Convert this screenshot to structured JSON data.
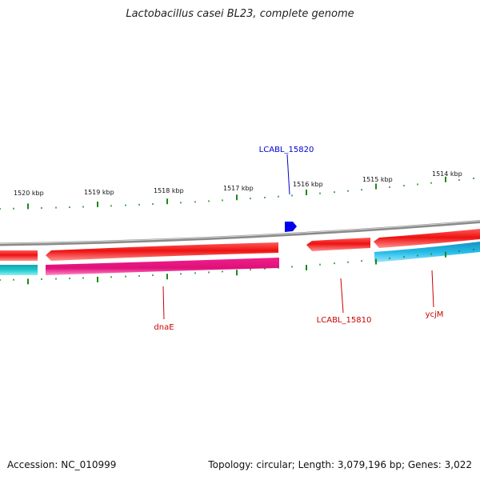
{
  "title": "Lactobacillus casei BL23, complete genome",
  "footer": {
    "accession": "Accession: NC_010999",
    "topology": "Topology: circular; Length: 3,079,196 bp; Genes: 3,022"
  },
  "colors": {
    "backbone": "#808080",
    "forward_gene": "#ee1111",
    "reverse_gene_magenta": "#ee1f8f",
    "reverse_gene_cyan": "#22bce8",
    "teal_gene": "#1fc0c8",
    "tick": "#1a8a1a",
    "label_red": "#cc0000",
    "label_blue": "#0000cc",
    "small_gene": "#0000ee"
  },
  "ruler": {
    "labels": [
      "1520 kbp",
      "1519 kbp",
      "1518 kbp",
      "1517 kbp",
      "1516 kbp",
      "1515 kbp",
      "1514 kbp"
    ]
  },
  "genes": [
    {
      "label": "LCABL_15820",
      "track": "forward-small",
      "color": "blue"
    },
    {
      "label": "dnaE",
      "track": "reverse",
      "color": "magenta"
    },
    {
      "label": "LCABL_15810",
      "track": "forward",
      "color": "red"
    },
    {
      "label": "ycjM",
      "track": "forward",
      "color": "red"
    }
  ]
}
